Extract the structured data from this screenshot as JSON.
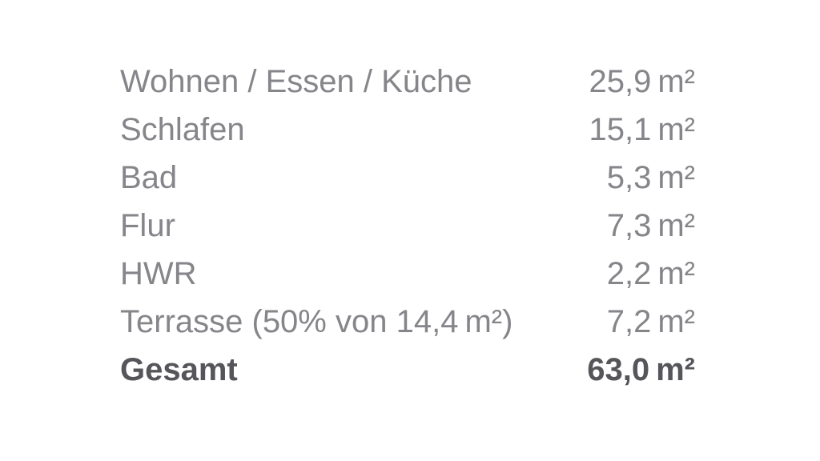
{
  "area_table": {
    "rows": [
      {
        "label": "Wohnen / Essen / Küche",
        "value": "25,9 m²"
      },
      {
        "label": "Schlafen",
        "value": "15,1 m²"
      },
      {
        "label": "Bad",
        "value": "5,3 m²"
      },
      {
        "label": "Flur",
        "value": "7,3 m²"
      },
      {
        "label": "HWR",
        "value": "2,2 m²"
      },
      {
        "label": "Terrasse (50% von 14,4 m²)",
        "value": "7,2 m²"
      }
    ],
    "total": {
      "label": "Gesamt",
      "value": "63,0 m²"
    },
    "text_color": "#85858a",
    "total_text_color": "#55555a",
    "background_color": "#ffffff"
  }
}
